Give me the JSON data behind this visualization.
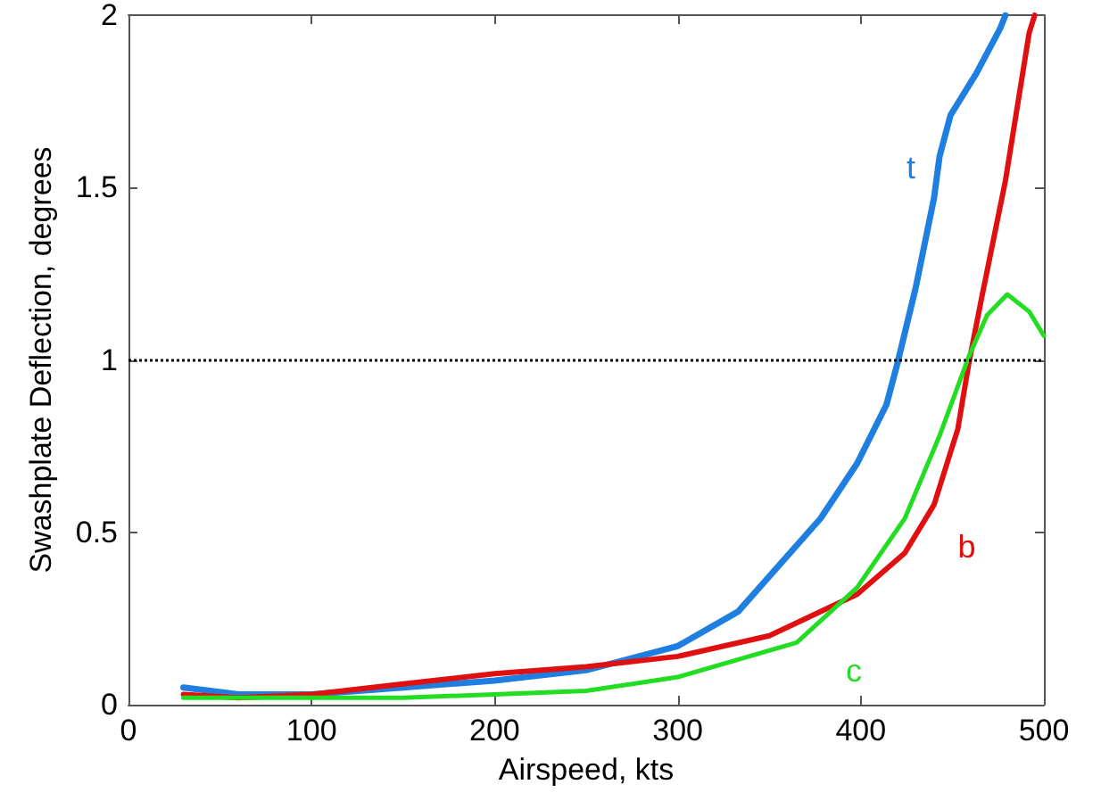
{
  "chart_data": {
    "type": "line",
    "xlabel": "Airspeed, kts",
    "ylabel": "Swashplate Deflection, degrees",
    "xlim": [
      0,
      500
    ],
    "xticks": [
      0,
      100,
      200,
      300,
      400,
      500
    ],
    "ylim": [
      0,
      2
    ],
    "yticks": [
      0,
      0.5,
      1,
      1.5,
      2
    ],
    "grid": false,
    "legend": false,
    "marker": "none",
    "line_style": "solid",
    "series": [
      {
        "name": "t",
        "color": "#1f7fe0",
        "x": [
          30,
          60,
          100,
          150,
          200,
          250,
          300,
          333,
          378,
          398,
          414,
          420,
          430,
          440,
          443,
          449,
          463,
          476,
          479
        ],
        "values": [
          0.05,
          0.03,
          0.03,
          0.05,
          0.07,
          0.1,
          0.17,
          0.27,
          0.54,
          0.7,
          0.87,
          0.99,
          1.21,
          1.47,
          1.59,
          1.71,
          1.83,
          1.96,
          2.0
        ]
      },
      {
        "name": "b",
        "color": "#e01010",
        "x": [
          30,
          60,
          100,
          150,
          200,
          250,
          300,
          350,
          398,
          424,
          440,
          453,
          459,
          466,
          479,
          492,
          495
        ],
        "values": [
          0.03,
          0.02,
          0.03,
          0.06,
          0.09,
          0.11,
          0.14,
          0.2,
          0.32,
          0.44,
          0.58,
          0.8,
          0.99,
          1.18,
          1.52,
          1.95,
          2.0
        ]
      },
      {
        "name": "c",
        "color": "#22dd22",
        "x": [
          30,
          60,
          100,
          150,
          200,
          250,
          300,
          365,
          398,
          424,
          443,
          459,
          469,
          480,
          492,
          500
        ],
        "values": [
          0.02,
          0.02,
          0.02,
          0.02,
          0.03,
          0.04,
          0.08,
          0.18,
          0.34,
          0.54,
          0.78,
          1.01,
          1.13,
          1.19,
          1.14,
          1.07
        ]
      }
    ],
    "ref_lines": [
      {
        "axis": "y",
        "value": 1,
        "label": null,
        "color": "#000000",
        "line_style": "dotted"
      }
    ]
  }
}
